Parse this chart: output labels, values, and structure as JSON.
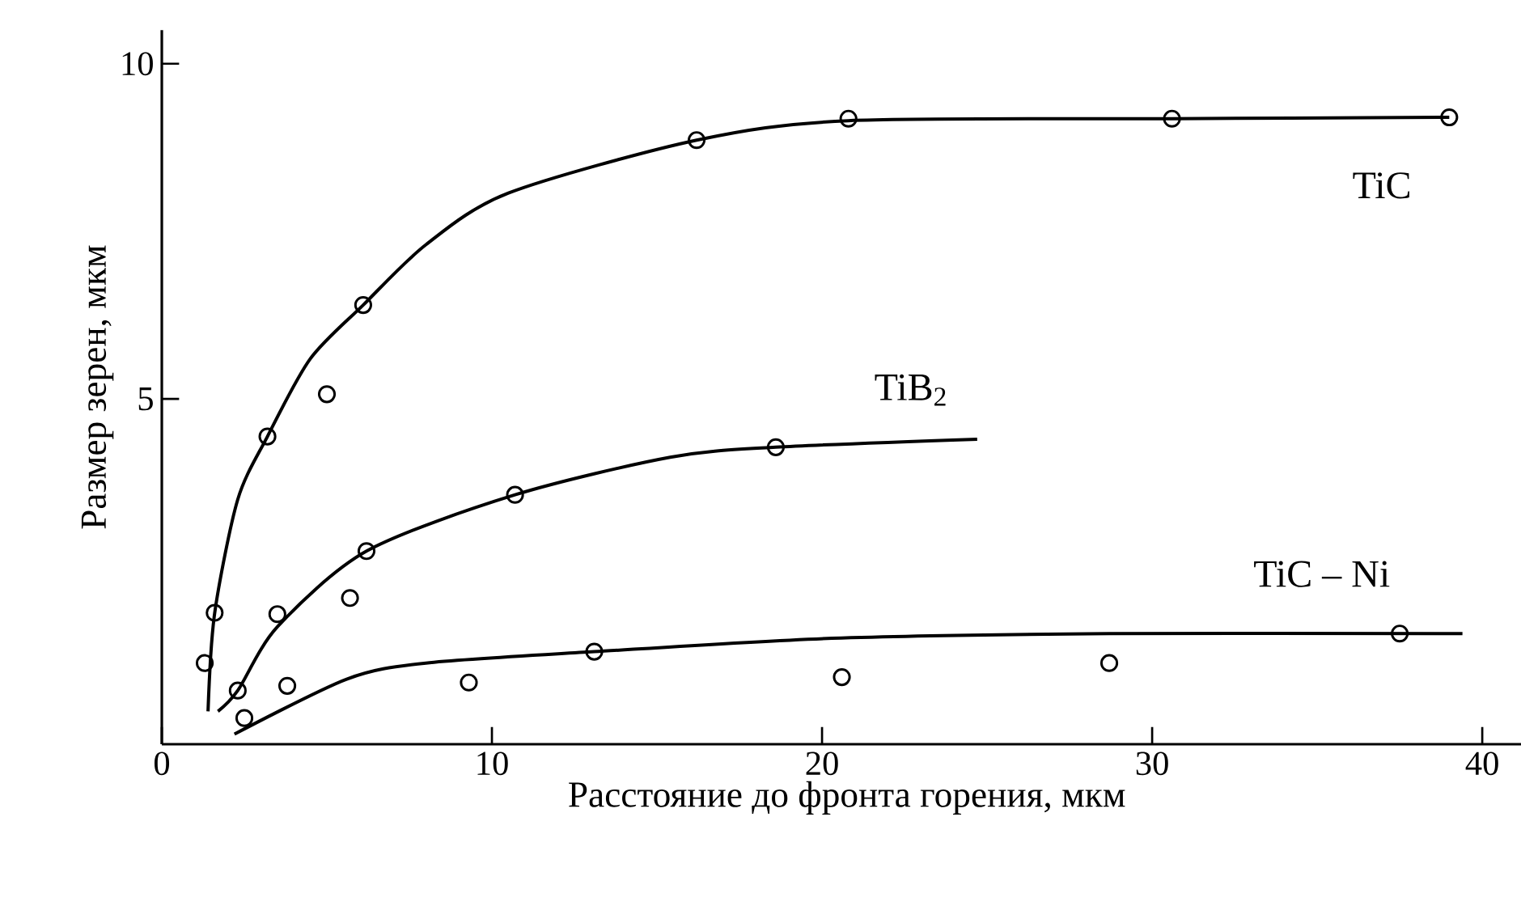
{
  "chart_data": {
    "type": "scatter",
    "xlabel": "Расстояние до фронта горения, мкм",
    "ylabel": "Размер зерен, мкм",
    "xlim": [
      0,
      41.5
    ],
    "ylim": [
      -0.15,
      10.5
    ],
    "xticks": [
      0,
      10,
      20,
      30,
      40
    ],
    "yticks": [
      5,
      10
    ],
    "grid": false,
    "legend": false,
    "series": [
      {
        "marker": "circle",
        "color": "#000000",
        "x": [
          1.3,
          1.6,
          3.2,
          5.0,
          6.1,
          16.2,
          20.8,
          30.6,
          39.0
        ],
        "values": [
          1.06,
          1.81,
          4.44,
          5.07,
          6.4,
          8.86,
          9.18,
          9.18,
          9.2
        ]
      },
      {
        "type": "line",
        "name": "TiC",
        "marker": "none",
        "line_style": "solid",
        "color": "#000000",
        "x": [
          1.4,
          1.6,
          2.3,
          3.2,
          4.5,
          6.1,
          8.0,
          10.5,
          16.2,
          20.8,
          30.6,
          39.0
        ],
        "values": [
          0.34,
          1.8,
          3.5,
          4.44,
          5.6,
          6.4,
          7.3,
          8.07,
          8.86,
          9.15,
          9.18,
          9.2
        ]
      },
      {
        "marker": "circle",
        "color": "#000000",
        "x": [
          2.3,
          3.5,
          5.7,
          6.2,
          10.7,
          18.6
        ],
        "values": [
          0.65,
          1.79,
          2.03,
          2.73,
          3.57,
          4.28
        ]
      },
      {
        "type": "line",
        "name": "TiB$_{2}$",
        "marker": "none",
        "line_style": "solid",
        "color": "#000000",
        "x": [
          1.7,
          2.3,
          3.5,
          6.2,
          10.7,
          15.4,
          18.6,
          24.7
        ],
        "values": [
          0.34,
          0.65,
          1.6,
          2.73,
          3.57,
          4.13,
          4.28,
          4.4
        ]
      },
      {
        "marker": "circle",
        "color": "#000000",
        "x": [
          2.5,
          3.8,
          9.3,
          13.1,
          20.6,
          28.7,
          37.5
        ],
        "values": [
          0.24,
          0.72,
          0.77,
          1.23,
          0.85,
          1.06,
          1.5
        ]
      },
      {
        "type": "line",
        "name": "TiC – Ni",
        "marker": "none",
        "line_style": "solid",
        "color": "#000000",
        "x": [
          2.2,
          5.6,
          8.0,
          13.1,
          20.3,
          28.7,
          39.4
        ],
        "values": [
          0.0,
          0.82,
          1.06,
          1.23,
          1.43,
          1.5,
          1.5
        ]
      }
    ]
  }
}
